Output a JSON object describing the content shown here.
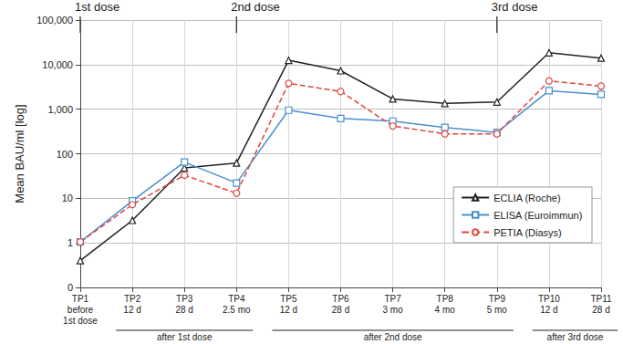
{
  "chart_data": {
    "type": "line",
    "y_label": "Mean BAU/ml [log]",
    "categories": [
      "TP1\nbefore\n1st dose",
      "TP2\n12 d",
      "TP3\n28 d",
      "TP4\n2.5 mo",
      "TP5\n12 d",
      "TP6\n28 d",
      "TP7\n3 mo",
      "TP8\n4 mo",
      "TP9\n5 mo",
      "TP10\n12 d",
      "TP11\n28 d"
    ],
    "series": [
      {
        "name": "ECLIA (Roche)",
        "color": "#222222",
        "marker": "triangle",
        "line_style": "solid",
        "values": [
          0.4,
          3.2,
          48,
          62,
          12500,
          7300,
          1700,
          1350,
          1450,
          18500,
          14000
        ]
      },
      {
        "name": "ELISA (Euroimmun)",
        "color": "#4a90d0",
        "marker": "square",
        "line_style": "solid",
        "values": [
          1.05,
          8.8,
          65,
          22,
          950,
          620,
          540,
          390,
          300,
          2600,
          2150
        ]
      },
      {
        "name": "PETIA (Diasys)",
        "color": "#e0463e",
        "marker": "circle",
        "line_style": "dashed",
        "values": [
          1.05,
          7.2,
          33,
          13,
          3800,
          2500,
          420,
          280,
          280,
          4300,
          3300
        ]
      }
    ],
    "log": "y",
    "ylim": [
      0.1,
      100000
    ],
    "yticks": [
      {
        "value": 0.1,
        "label": "0"
      },
      1,
      10,
      100,
      {
        "value": 1000,
        "label": "1,000"
      },
      {
        "value": 10000,
        "label": "10,000"
      },
      {
        "value": 100000,
        "label": "100,000"
      }
    ],
    "grid": true,
    "legend": "right",
    "doses": [
      {
        "label": "1st dose",
        "category": 0
      },
      {
        "label": "2nd dose",
        "category": 3
      },
      {
        "label": "3rd dose",
        "category": 8
      }
    ],
    "groups": [
      {
        "label": "after 1st dose",
        "from": 1,
        "to": 3
      },
      {
        "label": "after 2nd dose",
        "from": 4,
        "to": 8
      },
      {
        "label": "after 3rd dose",
        "from": 9,
        "to": 10
      }
    ]
  }
}
